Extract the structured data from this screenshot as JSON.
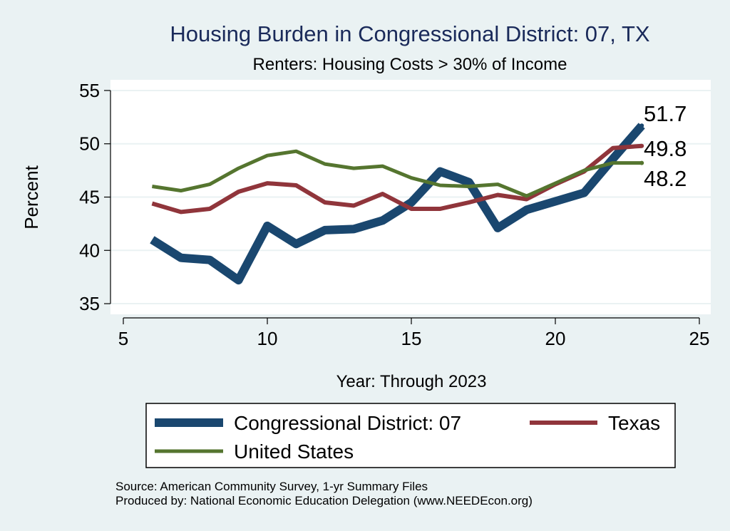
{
  "chart_data": {
    "type": "line",
    "title": "Housing Burden in Congressional District:  07, TX",
    "subtitle": "Renters: Housing Costs > 30% of Income",
    "xlabel": "Year: Through 2023",
    "ylabel": "Percent",
    "xlim": [
      5,
      25
    ],
    "ylim": [
      34,
      56
    ],
    "xticks": [
      5,
      10,
      15,
      20,
      25
    ],
    "yticks": [
      35,
      40,
      45,
      50,
      55
    ],
    "grid": true,
    "x": [
      6,
      7,
      8,
      9,
      10,
      11,
      12,
      13,
      14,
      15,
      16,
      17,
      18,
      19,
      20,
      21,
      22,
      23
    ],
    "series": [
      {
        "name": "Congressional District:  07",
        "color": "#1a476f",
        "values": [
          41.0,
          39.3,
          39.1,
          37.2,
          42.3,
          40.6,
          41.9,
          42.0,
          42.8,
          44.5,
          47.4,
          46.4,
          42.1,
          43.8,
          44.6,
          45.4,
          48.6,
          51.7
        ],
        "end_label": "51.7"
      },
      {
        "name": "Texas",
        "color": "#90353b",
        "values": [
          44.4,
          43.6,
          43.9,
          45.5,
          46.3,
          46.1,
          44.5,
          44.2,
          45.3,
          43.9,
          43.9,
          44.5,
          45.2,
          44.8,
          46.2,
          47.4,
          49.6,
          49.8
        ],
        "end_label": "49.8"
      },
      {
        "name": "United States",
        "color": "#55752f",
        "values": [
          46.0,
          45.6,
          46.2,
          47.7,
          48.9,
          49.3,
          48.1,
          47.7,
          47.9,
          46.8,
          46.1,
          46.0,
          46.2,
          45.1,
          46.3,
          47.5,
          48.2,
          48.2
        ],
        "end_label": "48.2"
      }
    ],
    "legend": {
      "placement": "bottom",
      "entries": [
        "Congressional District:  07",
        "Texas",
        "United States"
      ]
    },
    "notes": [
      "Source: American Community Survey, 1-yr Summary Files",
      "Produced by: National Economic Education Delegation (www.NEEDEcon.org)"
    ]
  }
}
